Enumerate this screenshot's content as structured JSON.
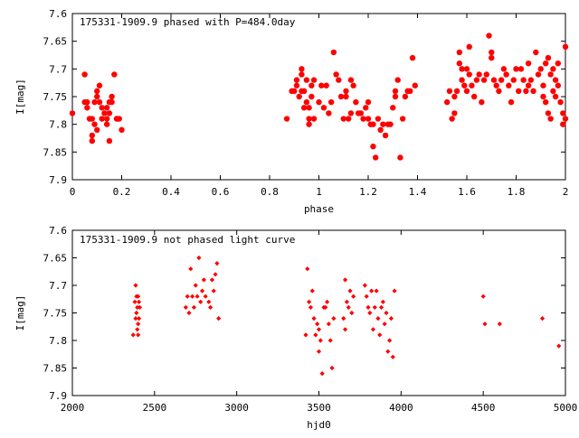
{
  "chart_data": [
    {
      "type": "scatter",
      "title": "175331-1909.9 phased with P=484.0day",
      "xlabel": "phase",
      "ylabel": "I[mag]",
      "xlim": [
        0,
        2
      ],
      "ylim": [
        7.6,
        7.9
      ],
      "y_inverted": true,
      "grid": false,
      "marker_color": "#ff0000",
      "marker_shape": "filled-octagon",
      "x_ticks": [
        "0",
        "0.2",
        "0.4",
        "0.6",
        "0.8",
        "1",
        "1.2",
        "1.4",
        "1.6",
        "1.8",
        "2"
      ],
      "y_ticks": [
        "7.6",
        "7.65",
        "7.7",
        "7.75",
        "7.8",
        "7.85",
        "7.9"
      ],
      "points": [
        [
          0.0,
          7.78
        ],
        [
          0.05,
          7.76
        ],
        [
          0.05,
          7.71
        ],
        [
          0.06,
          7.77
        ],
        [
          0.06,
          7.76
        ],
        [
          0.07,
          7.79
        ],
        [
          0.07,
          7.79
        ],
        [
          0.08,
          7.82
        ],
        [
          0.08,
          7.83
        ],
        [
          0.08,
          7.79
        ],
        [
          0.09,
          7.8
        ],
        [
          0.09,
          7.76
        ],
        [
          0.1,
          7.75
        ],
        [
          0.1,
          7.81
        ],
        [
          0.1,
          7.74
        ],
        [
          0.11,
          7.73
        ],
        [
          0.11,
          7.76
        ],
        [
          0.12,
          7.77
        ],
        [
          0.12,
          7.79
        ],
        [
          0.13,
          7.78
        ],
        [
          0.14,
          7.79
        ],
        [
          0.14,
          7.8
        ],
        [
          0.14,
          7.77
        ],
        [
          0.15,
          7.76
        ],
        [
          0.15,
          7.83
        ],
        [
          0.15,
          7.78
        ],
        [
          0.16,
          7.76
        ],
        [
          0.16,
          7.75
        ],
        [
          0.17,
          7.71
        ],
        [
          0.18,
          7.79
        ],
        [
          0.18,
          7.79
        ],
        [
          0.19,
          7.79
        ],
        [
          0.2,
          7.81
        ],
        [
          0.87,
          7.79
        ],
        [
          0.89,
          7.74
        ],
        [
          0.9,
          7.74
        ],
        [
          0.91,
          7.72
        ],
        [
          0.91,
          7.73
        ],
        [
          0.92,
          7.75
        ],
        [
          0.93,
          7.74
        ],
        [
          0.93,
          7.7
        ],
        [
          0.93,
          7.71
        ],
        [
          0.94,
          7.74
        ],
        [
          0.94,
          7.77
        ],
        [
          0.95,
          7.76
        ],
        [
          0.95,
          7.72
        ],
        [
          0.96,
          7.79
        ],
        [
          0.96,
          7.8
        ],
        [
          0.96,
          7.77
        ],
        [
          0.97,
          7.75
        ],
        [
          0.97,
          7.73
        ],
        [
          0.98,
          7.79
        ],
        [
          0.98,
          7.72
        ],
        [
          1.0,
          7.76
        ],
        [
          1.01,
          7.73
        ],
        [
          1.02,
          7.77
        ],
        [
          1.03,
          7.73
        ],
        [
          1.04,
          7.78
        ],
        [
          1.05,
          7.76
        ],
        [
          1.06,
          7.67
        ],
        [
          1.07,
          7.71
        ],
        [
          1.08,
          7.72
        ],
        [
          1.09,
          7.75
        ],
        [
          1.1,
          7.79
        ],
        [
          1.11,
          7.75
        ],
        [
          1.11,
          7.74
        ],
        [
          1.12,
          7.79
        ],
        [
          1.13,
          7.78
        ],
        [
          1.13,
          7.72
        ],
        [
          1.14,
          7.73
        ],
        [
          1.15,
          7.76
        ],
        [
          1.16,
          7.78
        ],
        [
          1.17,
          7.78
        ],
        [
          1.18,
          7.79
        ],
        [
          1.19,
          7.77
        ],
        [
          1.2,
          7.76
        ],
        [
          1.2,
          7.79
        ],
        [
          1.21,
          7.8
        ],
        [
          1.22,
          7.8
        ],
        [
          1.22,
          7.84
        ],
        [
          1.23,
          7.86
        ],
        [
          1.24,
          7.79
        ],
        [
          1.25,
          7.81
        ],
        [
          1.26,
          7.8
        ],
        [
          1.27,
          7.82
        ],
        [
          1.28,
          7.8
        ],
        [
          1.29,
          7.8
        ],
        [
          1.3,
          7.77
        ],
        [
          1.31,
          7.75
        ],
        [
          1.31,
          7.74
        ],
        [
          1.32,
          7.72
        ],
        [
          1.33,
          7.86
        ],
        [
          1.34,
          7.79
        ],
        [
          1.35,
          7.75
        ],
        [
          1.36,
          7.74
        ],
        [
          1.37,
          7.74
        ],
        [
          1.38,
          7.68
        ],
        [
          1.39,
          7.73
        ],
        [
          1.52,
          7.76
        ],
        [
          1.53,
          7.74
        ],
        [
          1.54,
          7.79
        ],
        [
          1.55,
          7.78
        ],
        [
          1.55,
          7.75
        ],
        [
          1.56,
          7.74
        ],
        [
          1.57,
          7.69
        ],
        [
          1.57,
          7.67
        ],
        [
          1.58,
          7.7
        ],
        [
          1.58,
          7.72
        ],
        [
          1.59,
          7.73
        ],
        [
          1.6,
          7.74
        ],
        [
          1.6,
          7.7
        ],
        [
          1.61,
          7.66
        ],
        [
          1.61,
          7.71
        ],
        [
          1.62,
          7.73
        ],
        [
          1.63,
          7.75
        ],
        [
          1.64,
          7.72
        ],
        [
          1.65,
          7.71
        ],
        [
          1.66,
          7.76
        ],
        [
          1.67,
          7.72
        ],
        [
          1.68,
          7.71
        ],
        [
          1.69,
          7.64
        ],
        [
          1.7,
          7.67
        ],
        [
          1.7,
          7.68
        ],
        [
          1.71,
          7.72
        ],
        [
          1.72,
          7.73
        ],
        [
          1.73,
          7.74
        ],
        [
          1.74,
          7.72
        ],
        [
          1.75,
          7.7
        ],
        [
          1.76,
          7.71
        ],
        [
          1.77,
          7.73
        ],
        [
          1.78,
          7.76
        ],
        [
          1.79,
          7.72
        ],
        [
          1.8,
          7.7
        ],
        [
          1.81,
          7.74
        ],
        [
          1.82,
          7.7
        ],
        [
          1.83,
          7.72
        ],
        [
          1.84,
          7.74
        ],
        [
          1.85,
          7.73
        ],
        [
          1.85,
          7.69
        ],
        [
          1.86,
          7.72
        ],
        [
          1.87,
          7.74
        ],
        [
          1.88,
          7.67
        ],
        [
          1.89,
          7.71
        ],
        [
          1.9,
          7.7
        ],
        [
          1.91,
          7.73
        ],
        [
          1.91,
          7.75
        ],
        [
          1.92,
          7.76
        ],
        [
          1.92,
          7.69
        ],
        [
          1.93,
          7.68
        ],
        [
          1.93,
          7.78
        ],
        [
          1.94,
          7.71
        ],
        [
          1.94,
          7.79
        ],
        [
          1.95,
          7.74
        ],
        [
          1.95,
          7.7
        ],
        [
          1.96,
          7.72
        ],
        [
          1.96,
          7.75
        ],
        [
          1.97,
          7.69
        ],
        [
          1.97,
          7.73
        ],
        [
          1.98,
          7.76
        ],
        [
          1.99,
          7.78
        ],
        [
          1.99,
          7.8
        ],
        [
          2.0,
          7.66
        ],
        [
          2.0,
          7.79
        ]
      ]
    },
    {
      "type": "scatter",
      "title": "175331-1909.9 not phased light curve",
      "xlabel": "hjd0",
      "ylabel": "I[mag]",
      "xlim": [
        2000,
        5000
      ],
      "ylim": [
        7.6,
        7.9
      ],
      "y_inverted": true,
      "grid": false,
      "marker_color": "#ff0000",
      "marker_shape": "filled-diamond",
      "x_ticks": [
        "2000",
        "2500",
        "3000",
        "3500",
        "4000",
        "4500",
        "5000"
      ],
      "y_ticks": [
        "7.6",
        "7.65",
        "7.7",
        "7.75",
        "7.8",
        "7.85",
        "7.9"
      ],
      "points": [
        [
          2370,
          7.79
        ],
        [
          2380,
          7.73
        ],
        [
          2385,
          7.7
        ],
        [
          2385,
          7.76
        ],
        [
          2390,
          7.72
        ],
        [
          2390,
          7.75
        ],
        [
          2395,
          7.78
        ],
        [
          2395,
          7.74
        ],
        [
          2400,
          7.77
        ],
        [
          2400,
          7.79
        ],
        [
          2400,
          7.72
        ],
        [
          2405,
          7.76
        ],
        [
          2405,
          7.73
        ],
        [
          2410,
          7.74
        ],
        [
          2690,
          7.74
        ],
        [
          2700,
          7.72
        ],
        [
          2710,
          7.75
        ],
        [
          2720,
          7.67
        ],
        [
          2730,
          7.72
        ],
        [
          2740,
          7.74
        ],
        [
          2750,
          7.7
        ],
        [
          2760,
          7.72
        ],
        [
          2770,
          7.65
        ],
        [
          2780,
          7.73
        ],
        [
          2790,
          7.71
        ],
        [
          2800,
          7.69
        ],
        [
          2810,
          7.72
        ],
        [
          2830,
          7.73
        ],
        [
          2840,
          7.74
        ],
        [
          2850,
          7.69
        ],
        [
          2860,
          7.71
        ],
        [
          2870,
          7.68
        ],
        [
          2880,
          7.66
        ],
        [
          2890,
          7.76
        ],
        [
          3420,
          7.79
        ],
        [
          3430,
          7.67
        ],
        [
          3440,
          7.73
        ],
        [
          3450,
          7.74
        ],
        [
          3460,
          7.71
        ],
        [
          3470,
          7.76
        ],
        [
          3480,
          7.79
        ],
        [
          3490,
          7.77
        ],
        [
          3500,
          7.82
        ],
        [
          3500,
          7.78
        ],
        [
          3510,
          7.8
        ],
        [
          3520,
          7.86
        ],
        [
          3530,
          7.74
        ],
        [
          3540,
          7.74
        ],
        [
          3550,
          7.73
        ],
        [
          3560,
          7.77
        ],
        [
          3570,
          7.8
        ],
        [
          3580,
          7.85
        ],
        [
          3590,
          7.76
        ],
        [
          3650,
          7.76
        ],
        [
          3660,
          7.78
        ],
        [
          3660,
          7.69
        ],
        [
          3670,
          7.73
        ],
        [
          3680,
          7.74
        ],
        [
          3690,
          7.71
        ],
        [
          3700,
          7.75
        ],
        [
          3710,
          7.72
        ],
        [
          3780,
          7.7
        ],
        [
          3790,
          7.72
        ],
        [
          3800,
          7.74
        ],
        [
          3810,
          7.75
        ],
        [
          3820,
          7.71
        ],
        [
          3830,
          7.78
        ],
        [
          3840,
          7.74
        ],
        [
          3850,
          7.71
        ],
        [
          3860,
          7.76
        ],
        [
          3870,
          7.79
        ],
        [
          3880,
          7.74
        ],
        [
          3890,
          7.73
        ],
        [
          3900,
          7.77
        ],
        [
          3910,
          7.75
        ],
        [
          3920,
          7.82
        ],
        [
          3930,
          7.8
        ],
        [
          3940,
          7.76
        ],
        [
          3950,
          7.83
        ],
        [
          3960,
          7.71
        ],
        [
          4500,
          7.72
        ],
        [
          4510,
          7.77
        ],
        [
          4600,
          7.77
        ],
        [
          4860,
          7.76
        ],
        [
          4960,
          7.81
        ]
      ]
    }
  ]
}
